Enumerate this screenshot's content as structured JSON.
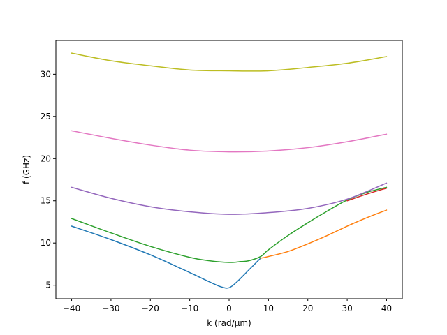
{
  "chart_data": {
    "type": "line",
    "title": "",
    "xlabel": "k (rad/μm)",
    "ylabel": "f (GHz)",
    "xlim": [
      -44,
      44
    ],
    "ylim": [
      3.4,
      34.0
    ],
    "xticks": [
      -40,
      -30,
      -20,
      -10,
      0,
      10,
      20,
      30,
      40
    ],
    "xtick_labels": [
      "−40",
      "−30",
      "−20",
      "−10",
      "0",
      "10",
      "20",
      "30",
      "40"
    ],
    "yticks": [
      5,
      10,
      15,
      20,
      25,
      30
    ],
    "ytick_labels": [
      "5",
      "10",
      "15",
      "20",
      "25",
      "30"
    ],
    "grid": false,
    "legend": "none",
    "series": [
      {
        "color": "#1f77b4",
        "x": [
          -40,
          -30,
          -20,
          -10,
          -5,
          -2,
          0,
          2,
          5,
          8
        ],
        "y": [
          12.0,
          10.4,
          8.6,
          6.5,
          5.4,
          4.8,
          4.7,
          5.4,
          6.8,
          8.2
        ]
      },
      {
        "color": "#ff7f0e",
        "x": [
          8,
          10,
          15,
          20,
          25,
          30,
          35,
          40
        ],
        "y": [
          8.2,
          8.4,
          9.0,
          9.9,
          10.9,
          12.0,
          13.0,
          13.9
        ]
      },
      {
        "color": "#2ca02c",
        "x": [
          -40,
          -30,
          -20,
          -10,
          -5,
          0,
          3,
          5,
          8,
          10,
          15,
          20,
          25,
          30,
          35,
          40
        ],
        "y": [
          12.9,
          11.2,
          9.6,
          8.3,
          7.9,
          7.7,
          7.8,
          7.9,
          8.4,
          9.2,
          10.9,
          12.4,
          13.8,
          15.1,
          16.0,
          16.6
        ]
      },
      {
        "color": "#d62728",
        "x": [
          30,
          35,
          40
        ],
        "y": [
          15.0,
          15.8,
          16.5
        ]
      },
      {
        "color": "#9467bd",
        "x": [
          -40,
          -30,
          -20,
          -10,
          0,
          10,
          20,
          30,
          40
        ],
        "y": [
          16.6,
          15.3,
          14.3,
          13.7,
          13.4,
          13.6,
          14.1,
          15.2,
          17.1
        ]
      },
      {
        "color": "#e377c2",
        "x": [
          -40,
          -30,
          -20,
          -10,
          0,
          10,
          20,
          30,
          40
        ],
        "y": [
          23.3,
          22.4,
          21.6,
          21.0,
          20.8,
          20.9,
          21.3,
          22.0,
          22.9
        ]
      },
      {
        "color": "#bcbd22",
        "x": [
          -40,
          -30,
          -20,
          -10,
          0,
          10,
          20,
          30,
          40
        ],
        "y": [
          32.5,
          31.6,
          31.0,
          30.5,
          30.4,
          30.4,
          30.8,
          31.3,
          32.1
        ]
      }
    ]
  }
}
